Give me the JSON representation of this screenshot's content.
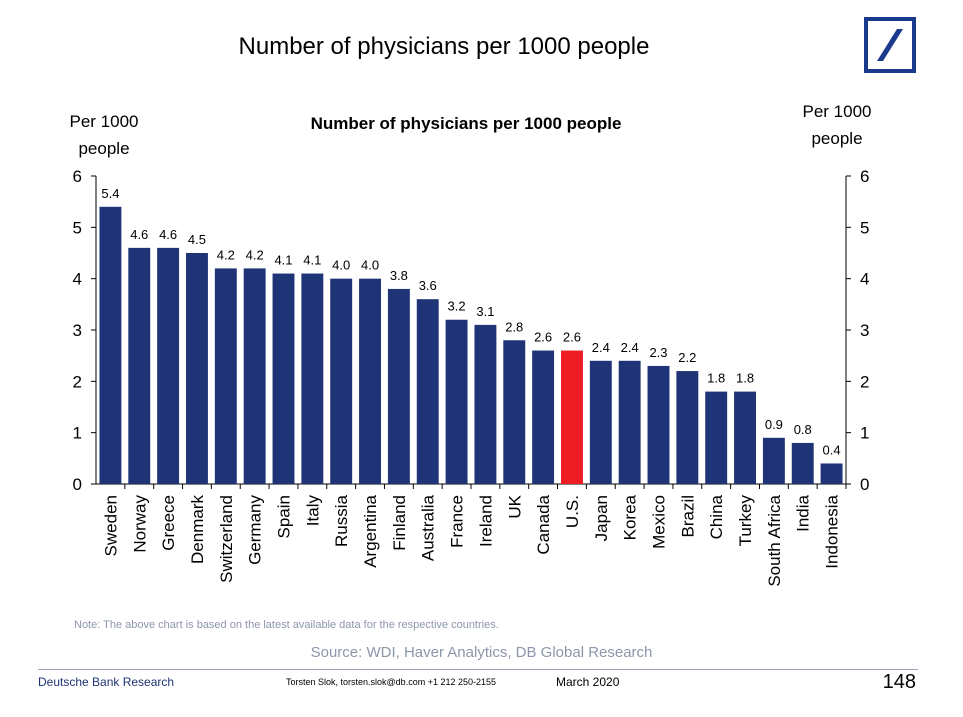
{
  "slide": {
    "title": "Number of physicians per 1000 people",
    "note": "Note: The above chart is based on the latest available data for the respective countries.",
    "source": "Source: WDI, Haver Analytics, DB Global Research",
    "footer_left": "Deutsche Bank Research",
    "footer_contact": "Torsten Slok, torsten.slok@db.com  +1 212 250-2155",
    "footer_date": "March  2020",
    "page_number": "148"
  },
  "colors": {
    "bar": "#1f3477",
    "highlight": "#ee1c25",
    "logo": "#1b3a8c"
  },
  "chart_data": {
    "type": "bar",
    "title": "Number of physicians per 1000 people",
    "ylabel_left": [
      "Per 1000",
      "people"
    ],
    "ylabel_right": [
      "Per 1000",
      "people"
    ],
    "ylim": [
      0,
      6
    ],
    "yticks": [
      0,
      1,
      2,
      3,
      4,
      5,
      6
    ],
    "grid": false,
    "categories": [
      "Sweden",
      "Norway",
      "Greece",
      "Denmark",
      "Switzerland",
      "Germany",
      "Spain",
      "Italy",
      "Russia",
      "Argentina",
      "Finland",
      "Australia",
      "France",
      "Ireland",
      "UK",
      "Canada",
      "U.S.",
      "Japan",
      "Korea",
      "Mexico",
      "Brazil",
      "China",
      "Turkey",
      "South Africa",
      "India",
      "Indonesia"
    ],
    "values": [
      5.4,
      4.6,
      4.6,
      4.5,
      4.2,
      4.2,
      4.1,
      4.1,
      4.0,
      4.0,
      3.8,
      3.6,
      3.2,
      3.1,
      2.8,
      2.6,
      2.6,
      2.4,
      2.4,
      2.3,
      2.2,
      1.8,
      1.8,
      0.9,
      0.8,
      0.4
    ],
    "labels": [
      "5.4",
      "4.6",
      "4.6",
      "4.5",
      "4.2",
      "4.2",
      "4.1",
      "4.1",
      "4.0",
      "4.0",
      "3.8",
      "3.6",
      "3.2",
      "3.1",
      "2.8",
      "2.6",
      "2.6",
      "2.4",
      "2.4",
      "2.3",
      "2.2",
      "1.8",
      "1.8",
      "0.9",
      "0.8",
      "0.4"
    ],
    "highlight_category": "U.S."
  }
}
